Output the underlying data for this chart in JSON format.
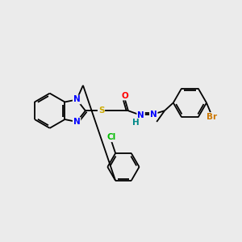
{
  "background_color": "#ebebeb",
  "bond_color": "#000000",
  "atom_colors": {
    "N": "#0000ff",
    "S": "#ccaa00",
    "O": "#ff0000",
    "Cl": "#00bb00",
    "Br": "#cc7700",
    "H": "#008888",
    "C": "#000000"
  },
  "font_size": 7.5,
  "fig_size": [
    3.0,
    3.0
  ],
  "dpi": 100
}
